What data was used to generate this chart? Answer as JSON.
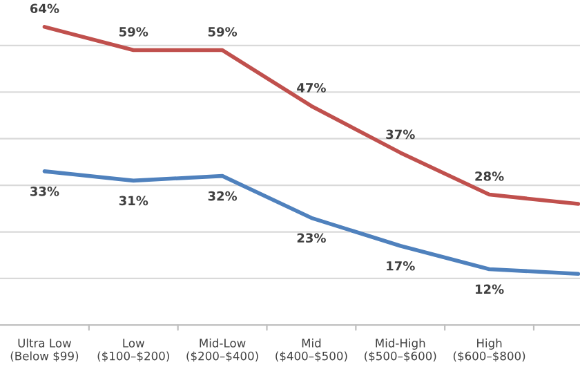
{
  "chart_data": {
    "type": "line",
    "categories": [
      "Ultra Low\n(Below $99)",
      "Low\n($100–$200)",
      "Mid-Low\n($200–$400)",
      "Mid\n($400–$500)",
      "Mid-High\n($500–$600)",
      "High\n($600–$800)",
      null
    ],
    "series": [
      {
        "color": "#c0504d",
        "values": [
          64,
          59,
          59,
          47,
          37,
          28,
          26
        ],
        "value_labels": [
          "64%",
          "59%",
          "59%",
          "47%",
          "37%",
          "28%",
          null
        ]
      },
      {
        "color": "#4f81bd",
        "values": [
          33,
          31,
          32,
          23,
          17,
          12,
          11
        ],
        "value_labels": [
          "33%",
          "31%",
          "32%",
          "23%",
          "17%",
          "12%",
          null
        ]
      }
    ],
    "yticks": [
      {
        "value": 0,
        "label": null
      },
      {
        "value": 10,
        "label": null
      },
      {
        "value": 20,
        "label": null
      },
      {
        "value": 30,
        "label": null
      },
      {
        "value": 40,
        "label": null
      },
      {
        "value": 50,
        "label": null
      },
      {
        "value": 60,
        "label": null
      }
    ],
    "grid": "y",
    "tick_labels": "x",
    "marker": "none",
    "line_style": "solid",
    "legend": false
  }
}
